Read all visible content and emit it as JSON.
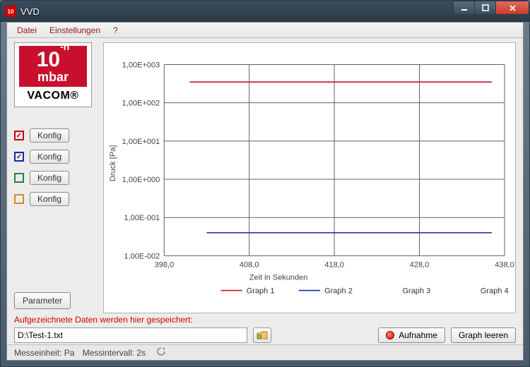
{
  "window": {
    "title": "VVD"
  },
  "menu": {
    "datei": "Datei",
    "einstellungen": "Einstellungen",
    "help": "?"
  },
  "logo": {
    "ten": "10",
    "exp": "-n",
    "mbar": "mbar",
    "brand": "VACOM®"
  },
  "konfig": {
    "label": "Konfig",
    "items": [
      {
        "color": "red",
        "checked": true
      },
      {
        "color": "blue",
        "checked": true
      },
      {
        "color": "green",
        "checked": false
      },
      {
        "color": "orange",
        "checked": false
      }
    ]
  },
  "parameter_label": "Parameter",
  "recorded_label": "Aufgezeichnete Daten werden hier gespeichert:",
  "path_value": "D:\\Test-1.txt",
  "record_label": "Aufnahme",
  "clear_label": "Graph leeren",
  "status": {
    "unit_label": "Messeinheit: Pa",
    "interval_label": "Messintervall: 2s"
  },
  "chart": {
    "type": "line-log",
    "ylabel": "Druck [Pa]",
    "xlabel": "Zeit in Sekunden",
    "background": "#ffffff",
    "grid_color": "#606060",
    "axis_color": "#000000",
    "xlim": [
      398.0,
      438.0
    ],
    "xticks": [
      398.0,
      408.0,
      418.0,
      428.0,
      438.0
    ],
    "xtick_labels": [
      "398,0",
      "408,0",
      "418,0",
      "428,0",
      "438,0"
    ],
    "ylim_exp": [
      -2,
      3
    ],
    "ytick_labels": [
      "1,00E-002",
      "1,00E-001",
      "1,00E+000",
      "1,00E+001",
      "1,00E+002",
      "1,00E+003"
    ],
    "label_fontsize": 11,
    "tick_fontsize": 11,
    "line_width": 1.6,
    "series": [
      {
        "name": "Graph 1",
        "color": "#c8102e",
        "x": [
          401.0,
          436.5
        ],
        "y": [
          350,
          350
        ],
        "visible": true
      },
      {
        "name": "Graph 2",
        "color": "#1a2a9a",
        "x": [
          403.0,
          436.5
        ],
        "y": [
          0.04,
          0.04
        ],
        "visible": true
      },
      {
        "name": "Graph 3",
        "color": "#1a8a3a",
        "x": [],
        "y": [],
        "visible": false
      },
      {
        "name": "Graph 4",
        "color": "#d88a1a",
        "x": [],
        "y": [],
        "visible": false
      }
    ],
    "legend": [
      "Graph 1",
      "Graph 2",
      "Graph 3",
      "Graph 4"
    ]
  }
}
